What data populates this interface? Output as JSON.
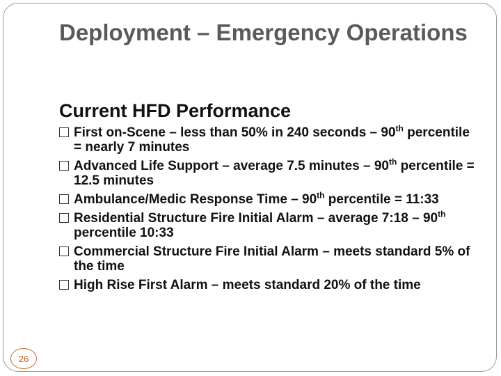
{
  "slide": {
    "title": "Deployment – Emergency Operations",
    "subtitle": "Current HFD Performance",
    "page_number": "26",
    "bullets": [
      {
        "text": "First on-Scene – less than 50% in 240 seconds – 90",
        "sup": "th",
        "tail": " percentile = nearly 7 minutes"
      },
      {
        "text": "Advanced Life Support – average 7.5 minutes – 90",
        "sup": "th",
        "tail": " percentile = 12.5 minutes"
      },
      {
        "text": "Ambulance/Medic Response Time – 90",
        "sup": "th",
        "tail": " percentile = 11:33"
      },
      {
        "text": "Residential Structure Fire Initial Alarm – average 7:18 – 90",
        "sup": "th",
        "tail": " percentile 10:33"
      },
      {
        "text": "Commercial Structure Fire Initial Alarm – meets standard 5% of the time",
        "sup": "",
        "tail": ""
      },
      {
        "text": "High Rise First Alarm – meets standard 20% of the time",
        "sup": "",
        "tail": ""
      }
    ],
    "colors": {
      "title": "#5a5a5a",
      "text": "#111111",
      "page_number": "#c05a1a"
    }
  }
}
